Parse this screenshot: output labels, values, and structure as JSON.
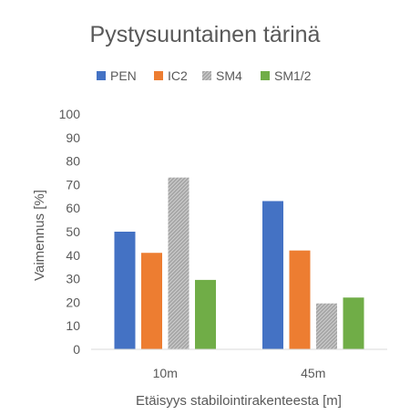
{
  "chart_data": {
    "type": "bar",
    "title": "Pystysuuntainen tärinä",
    "xlabel": "Etäisyys stabilointirakenteesta [m]",
    "ylabel": "Vaimennus [%]",
    "categories": [
      "10m",
      "45m"
    ],
    "series": [
      {
        "name": "PEN",
        "color": "#4472C4",
        "values": [
          50,
          63
        ]
      },
      {
        "name": "IC2",
        "color": "#ED7D31",
        "values": [
          41,
          42
        ]
      },
      {
        "name": "SM4",
        "color": "#A5A5A5",
        "pattern": "hatched",
        "values": [
          73,
          19.5
        ]
      },
      {
        "name": "SM1/2",
        "color": "#70AD47",
        "values": [
          29.5,
          22
        ]
      }
    ],
    "ylim": [
      0,
      100
    ],
    "yticks": [
      0,
      10,
      20,
      30,
      40,
      50,
      60,
      70,
      80,
      90,
      100
    ],
    "grid": false,
    "legend_position": "top"
  }
}
